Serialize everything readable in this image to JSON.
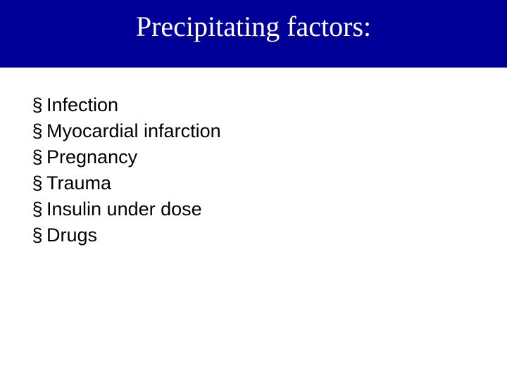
{
  "header": {
    "title": "Precipitating factors:",
    "background_color": "#000099",
    "title_color": "#ffffff",
    "title_fontsize": 40,
    "height": 96
  },
  "bullet": {
    "glyph": "§",
    "color": "#000000",
    "fontsize": 27
  },
  "list": {
    "items": [
      "Infection",
      "Myocardial infarction",
      "Pregnancy",
      "Trauma",
      "Insulin under dose",
      "Drugs"
    ],
    "text_color": "#000000",
    "fontsize": 27,
    "line_height": 35
  },
  "body": {
    "background_color": "#ffffff"
  }
}
